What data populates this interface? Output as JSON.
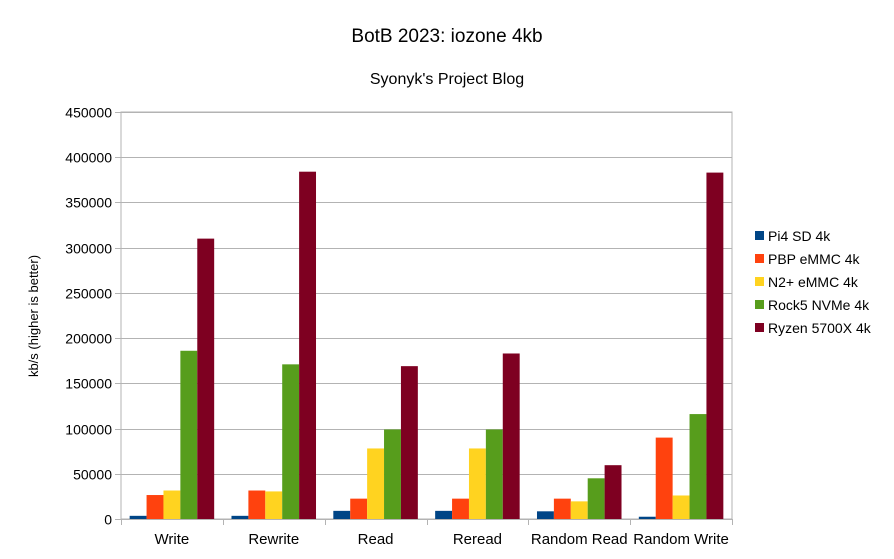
{
  "chart_data": {
    "type": "bar",
    "title": "BotB 2023: iozone 4kb",
    "subtitle": "Syonyk's Project Blog",
    "xlabel": "",
    "ylabel": "kb/s (higher is better)",
    "ylim": [
      0,
      450000
    ],
    "yticks": [
      0,
      50000,
      100000,
      150000,
      200000,
      250000,
      300000,
      350000,
      400000,
      450000
    ],
    "grid": true,
    "legend_position": "right",
    "categories": [
      "Write",
      "Rewrite",
      "Read",
      "Reread",
      "Random Read",
      "Random Write"
    ],
    "series": [
      {
        "name": "Pi4 SD 4k",
        "color": "#004586",
        "values": [
          3500,
          3500,
          9000,
          9000,
          8500,
          2500
        ]
      },
      {
        "name": "PBP eMMC 4k",
        "color": "#ff420e",
        "values": [
          26500,
          31500,
          22500,
          22500,
          22500,
          90000
        ]
      },
      {
        "name": "N2+ eMMC 4k",
        "color": "#ffd320",
        "values": [
          31500,
          30500,
          78000,
          78000,
          19500,
          26000
        ]
      },
      {
        "name": "Rock5 NVMe 4k",
        "color": "#579d1c",
        "values": [
          186000,
          171000,
          99000,
          99000,
          45000,
          116000
        ]
      },
      {
        "name": "Ryzen 5700X 4k",
        "color": "#7e0021",
        "values": [
          310000,
          384000,
          169000,
          183000,
          59500,
          383000
        ]
      }
    ]
  }
}
